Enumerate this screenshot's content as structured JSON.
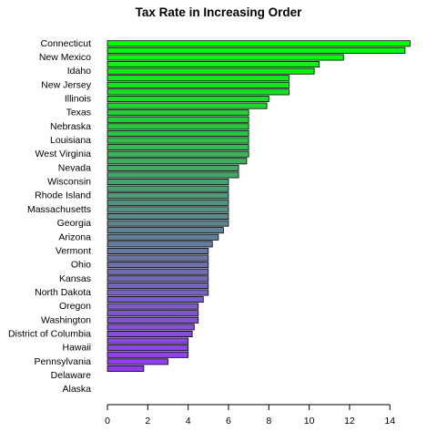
{
  "chart_data": {
    "type": "bar",
    "orientation": "horizontal",
    "title": "Tax Rate in Increasing Order",
    "xlabel": "",
    "ylabel": "",
    "xlim": [
      0,
      14.8
    ],
    "x_ticks": [
      0,
      2,
      4,
      6,
      8,
      10,
      12,
      14
    ],
    "grid": false,
    "categories": [
      "Connecticut",
      "",
      "New Mexico",
      "",
      "Idaho",
      "",
      "New Jersey",
      "",
      "Illinois",
      "",
      "Texas",
      "",
      "Nebraska",
      "",
      "Louisiana",
      "",
      "West Virginia",
      "",
      "Nevada",
      "",
      "Wisconsin",
      "",
      "Rhode Island",
      "",
      "Massachusetts",
      "",
      "Georgia",
      "",
      "Arizona",
      "",
      "Vermont",
      "",
      "Ohio",
      "",
      "Kansas",
      "",
      "North Dakota",
      "",
      "Oregon",
      "",
      "Washington",
      "",
      "District of Columbia",
      "",
      "Hawaii",
      "",
      "Pennsylvania",
      "",
      "Delaware",
      "",
      "Alaska"
    ],
    "values": [
      15.0,
      14.75,
      11.7,
      10.5,
      10.25,
      9.0,
      9.0,
      9.0,
      8.0,
      7.9,
      7.0,
      7.0,
      7.0,
      7.0,
      7.0,
      7.0,
      7.0,
      6.9,
      6.5,
      6.5,
      6.0,
      6.0,
      6.0,
      6.0,
      6.0,
      6.0,
      6.0,
      5.75,
      5.5,
      5.2,
      5.0,
      5.0,
      5.0,
      5.0,
      5.0,
      5.0,
      5.0,
      4.75,
      4.5,
      4.5,
      4.5,
      4.3,
      4.2,
      4.0,
      4.0,
      4.0,
      3.0,
      1.8,
      0.0,
      0.0,
      0.0
    ],
    "colors": {
      "top": "#00ff00",
      "mid": "#5a8a8a",
      "bottom": "#9b30ff",
      "bar_outline": "#000000"
    }
  }
}
